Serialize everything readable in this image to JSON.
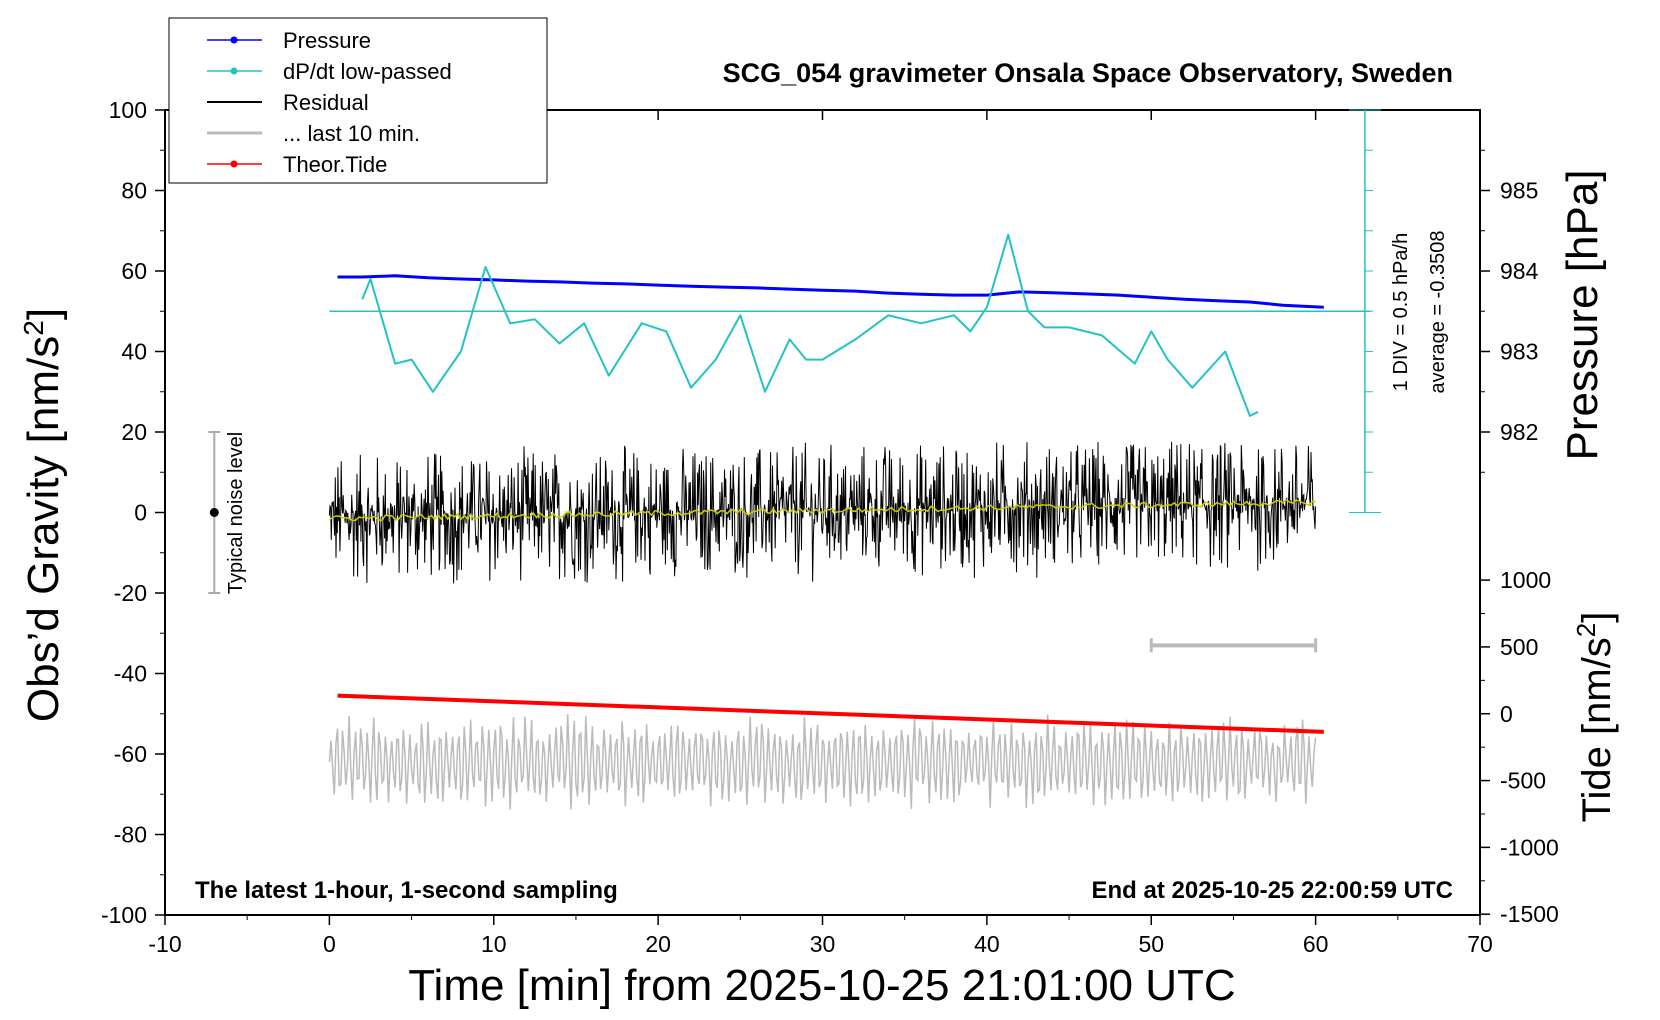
{
  "chart_data": {
    "type": "line",
    "title": "SCG_054 gravimeter Onsala Space Observatory, Sweden",
    "xlabel": "Time [min] from 2025-10-25 21:01:00 UTC",
    "ylabel_left": "Obs’d Gravity [nm/s",
    "ylabel_left_sup": "2",
    "ylabel_left_close": "]",
    "ylabel_right_top": "Pressure [hPa]",
    "ylabel_right_bottom": "Tide [nm/s",
    "ylabel_right_bottom_sup": "2",
    "ylabel_right_bottom_close": "]",
    "xlim": [
      -10,
      70
    ],
    "ylim": [
      -100,
      100
    ],
    "x_ticks": [
      "-10",
      "0",
      "10",
      "20",
      "30",
      "40",
      "50",
      "60",
      "70"
    ],
    "y_ticks": [
      "100",
      "80",
      "60",
      "40",
      "20",
      "0",
      "-20",
      "-40",
      "-60",
      "-80",
      "-100"
    ],
    "pressure_ticks": [
      "985",
      "984",
      "983",
      "982"
    ],
    "tide_ticks": [
      "1000",
      "500",
      "0",
      "-500",
      "-1000",
      "-1500"
    ],
    "legend": [
      "Pressure",
      "dP/dt low-passed",
      "Residual",
      "... last 10 min.",
      "Theor.Tide"
    ],
    "note_left": "The latest 1-hour, 1-second sampling",
    "note_right": "End at 2025-10-25 22:00:59 UTC",
    "noise_label": "Typical noise level",
    "noise_bar": [
      -20,
      20
    ],
    "dpdt_scale": "1 DIV = 0.5 hPa/h",
    "dpdt_average": "average = -0.3508",
    "last10_span": [
      50,
      60
    ],
    "colors": {
      "pressure": "#0000ff",
      "dpdt": "#22c3c3",
      "residual": "#000000",
      "residual_smooth": "#cccc00",
      "last10": "#bbbbbb",
      "tide": "#ff0000"
    },
    "series": [
      {
        "name": "Pressure",
        "x": [
          0.5,
          2,
          4,
          6,
          8,
          10,
          12,
          14,
          16,
          18,
          20,
          22,
          24,
          26,
          28,
          30,
          32,
          34,
          36,
          38,
          40,
          42,
          44,
          46,
          48,
          50,
          52,
          54,
          56,
          58,
          60.5
        ],
        "y": [
          58.5,
          58.5,
          58.8,
          58.3,
          58,
          57.8,
          57.5,
          57.3,
          57,
          56.8,
          56.5,
          56.2,
          56,
          55.8,
          55.5,
          55.2,
          55,
          54.5,
          54.2,
          54,
          54,
          54.8,
          54.6,
          54.3,
          54,
          53.5,
          53,
          52.6,
          52.3,
          51.5,
          51
        ]
      },
      {
        "name": "dP/dt low-passed",
        "x": [
          2,
          2.5,
          4,
          5,
          6.3,
          8,
          9.5,
          11,
          12.5,
          14,
          15.5,
          17,
          19,
          20.5,
          22,
          23.5,
          25,
          26.5,
          28,
          29,
          30,
          32,
          34,
          36,
          38,
          39,
          40,
          41.3,
          42.5,
          43.5,
          45,
          47,
          49,
          50,
          51,
          52.5,
          54.5,
          56,
          56.5
        ],
        "y": [
          53,
          58,
          37,
          38,
          30,
          40,
          61,
          47,
          48,
          42,
          47,
          34,
          47,
          45,
          31,
          38,
          49,
          30,
          43,
          38,
          38,
          43,
          49,
          47,
          49,
          45,
          51,
          69,
          50,
          46,
          46,
          44,
          37,
          45,
          38,
          31,
          40,
          24,
          25
        ]
      },
      {
        "name": "Theor.Tide",
        "x": [
          0.5,
          60.5
        ],
        "y": [
          -45.5,
          -54.5
        ]
      }
    ],
    "dpdt_zero_level": 50,
    "residual": {
      "x_start": 0,
      "x_end": 60,
      "noise_amplitude": 10,
      "smooth_start": -1.5,
      "smooth_end": 2.5
    },
    "last10_trace": {
      "x_start": 0,
      "x_end": 60,
      "center": -62,
      "amplitude": 10
    }
  }
}
